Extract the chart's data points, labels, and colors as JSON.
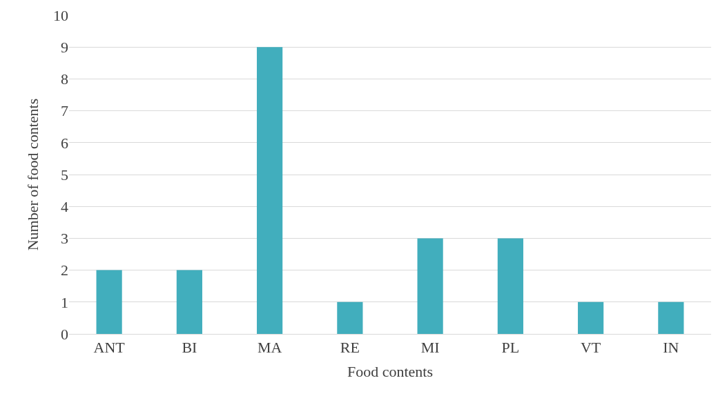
{
  "chart_data": {
    "type": "bar",
    "xlabel": "Food contents",
    "ylabel": "Number of food contents",
    "categories": [
      "ANT",
      "BI",
      "MA",
      "RE",
      "MI",
      "PL",
      "VT",
      "IN"
    ],
    "values": [
      2,
      2,
      9,
      1,
      3,
      3,
      1,
      1
    ],
    "color": "#41aebd",
    "ylim": [
      0,
      10
    ],
    "yticks": [
      0,
      1,
      2,
      3,
      4,
      5,
      6,
      7,
      8,
      9,
      10
    ],
    "grid": "y",
    "legend": false
  }
}
